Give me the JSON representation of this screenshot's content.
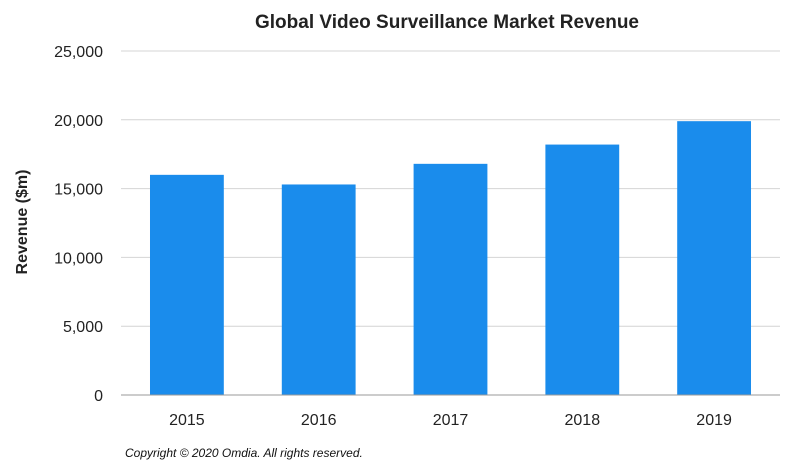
{
  "chart_data": {
    "type": "bar",
    "title": "Global Video Surveillance Market Revenue",
    "xlabel": "",
    "ylabel": "Revenue ($m)",
    "categories": [
      "2015",
      "2016",
      "2017",
      "2018",
      "2019"
    ],
    "values": [
      16000,
      15300,
      16800,
      18200,
      19900
    ],
    "ylim": [
      0,
      25000
    ],
    "yticks": [
      "0",
      "5,000",
      "10,000",
      "15,000",
      "20,000",
      "25,000"
    ],
    "grid": true,
    "legend": "none",
    "bar_color": "#1a8cec"
  },
  "footer": {
    "copyright": "Copyright © 2020 Omdia. All rights reserved."
  }
}
